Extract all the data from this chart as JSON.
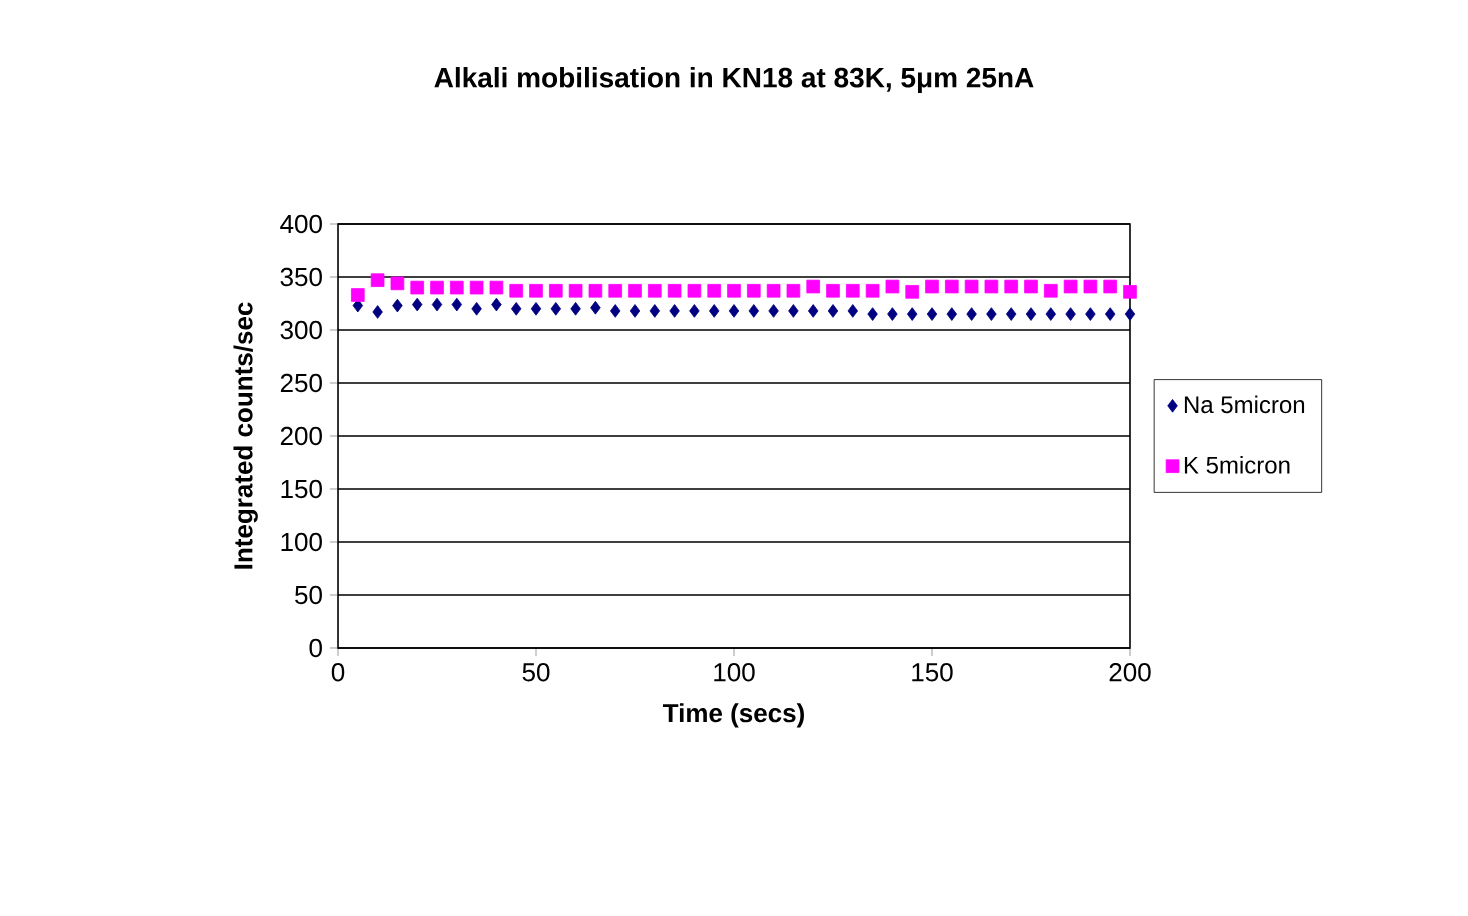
{
  "chart_data": {
    "type": "scatter",
    "title": "Alkali mobilisation in KN18 at 83K, 5μm 25nA",
    "xlabel": "Time (secs)",
    "ylabel": "Integrated counts/sec",
    "x": [
      5,
      10,
      15,
      20,
      25,
      30,
      35,
      40,
      45,
      50,
      55,
      60,
      65,
      70,
      75,
      80,
      85,
      90,
      95,
      100,
      105,
      110,
      115,
      120,
      125,
      130,
      135,
      140,
      145,
      150,
      155,
      160,
      165,
      170,
      175,
      180,
      185,
      190,
      195,
      200
    ],
    "series": [
      {
        "name": "Na 5micron",
        "color": "#000080",
        "marker": "diamond",
        "values": [
          323,
          317,
          323,
          324,
          324,
          324,
          320,
          324,
          320,
          320,
          320,
          320,
          321,
          318,
          318,
          318,
          318,
          318,
          318,
          318,
          318,
          318,
          318,
          318,
          318,
          318,
          315,
          315,
          315,
          315,
          315,
          315,
          315,
          315,
          315,
          315,
          315,
          315,
          315,
          315
        ]
      },
      {
        "name": "K 5micron",
        "color": "#ff00ff",
        "marker": "square",
        "values": [
          333,
          347,
          344,
          340,
          340,
          340,
          340,
          340,
          337,
          337,
          337,
          337,
          337,
          337,
          337,
          337,
          337,
          337,
          337,
          337,
          337,
          337,
          337,
          341,
          337,
          337,
          337,
          341,
          336,
          341,
          341,
          341,
          341,
          341,
          341,
          337,
          341,
          341,
          341,
          336
        ]
      }
    ],
    "xlim": [
      0,
      200
    ],
    "ylim": [
      0,
      400
    ],
    "xticks": [
      0,
      50,
      100,
      150,
      200
    ],
    "yticks": [
      0,
      50,
      100,
      150,
      200,
      250,
      300,
      350,
      400
    ],
    "grid": "y",
    "legend": "right"
  }
}
